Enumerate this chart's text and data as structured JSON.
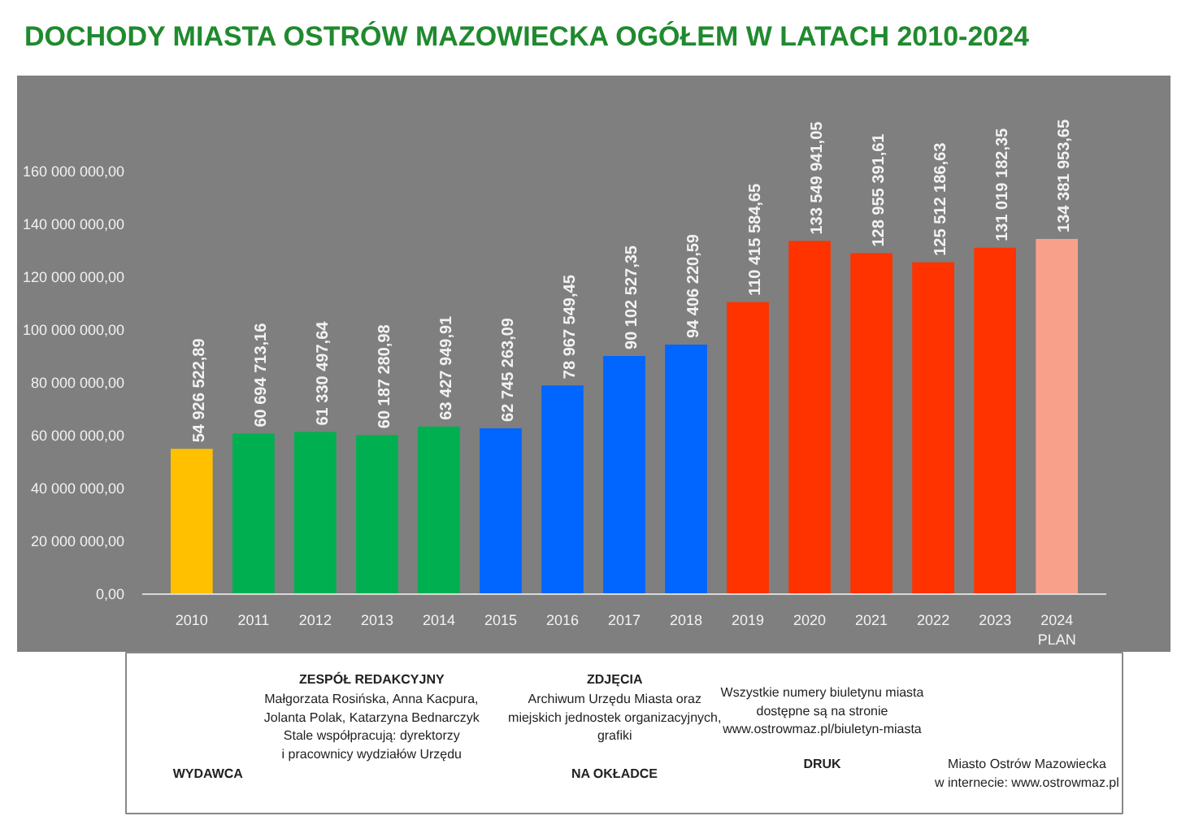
{
  "chart_data": {
    "type": "bar",
    "title": "DOCHODY MIASTA OSTRÓW MAZOWIECKA OGÓŁEM W LATACH 2010-2024",
    "categories": [
      "2010",
      "2011",
      "2012",
      "2013",
      "2014",
      "2015",
      "2016",
      "2017",
      "2018",
      "2019",
      "2020",
      "2021",
      "2022",
      "2023",
      "2024\nPLAN"
    ],
    "values": [
      54926522.89,
      60694713.16,
      61330497.64,
      60187280.98,
      63427949.91,
      62745263.09,
      78967549.45,
      90102527.35,
      94406220.59,
      110415584.65,
      133549941.05,
      128955391.61,
      125512186.63,
      131019182.35,
      134381953.65
    ],
    "colors": [
      "#ffc000",
      "#00b050",
      "#00b050",
      "#00b050",
      "#00b050",
      "#0066ff",
      "#0066ff",
      "#0066ff",
      "#0066ff",
      "#ff3300",
      "#ff3300",
      "#ff3300",
      "#ff3300",
      "#ff3300",
      "#f9a08a"
    ],
    "value_labels": [
      "54 926 522,89",
      "60 694 713,16",
      "61 330 497,64",
      "60 187 280,98",
      "63 427 949,91",
      "62 745 263,09",
      "78 967 549,45",
      "90 102 527,35",
      "94 406 220,59",
      "110 415 584,65",
      "133 549 941,05",
      "128 955 391,61",
      "125 512 186,63",
      "131 019 182,35",
      "134 381 953,65"
    ],
    "ylim": [
      0,
      190000000
    ],
    "yticks": [
      {
        "value": 0,
        "label": "0,00"
      },
      {
        "value": 20000000,
        "label": "20 000 000,00"
      },
      {
        "value": 40000000,
        "label": "40 000 000,00"
      },
      {
        "value": 60000000,
        "label": "60 000 000,00"
      },
      {
        "value": 80000000,
        "label": "80 000 000,00"
      },
      {
        "value": 100000000,
        "label": "100 000 000,00"
      },
      {
        "value": 120000000,
        "label": "120 000 000,00"
      },
      {
        "value": 140000000,
        "label": "140 000 000,00"
      },
      {
        "value": 160000000,
        "label": "160 000 000,00"
      }
    ],
    "grid": false,
    "annotations": [
      "WYDAWCA",
      "ZESPÓŁ REDAKCYJNY",
      "Małgorzata Rosińska, Anna Kacpura,\nJolanta Polak, Katarzyna Bednarczyk\nStale współpracują: dyrektorzy\ni pracownicy wydziałów Urzędu",
      "ZDJĘCIA",
      "Archiwum Urzędu Miasta oraz\nmiejskich jednostek organizacyjnych,\ngrafiki",
      "NA OKŁADCE",
      "Wszystkie numery biuletynu miasta\ndostępne są na stronie\nwww.ostrowmaz.pl/biuletyn-miasta",
      "DRUK",
      "Miasto Ostrów Mazowiecka\nw internecie: www.ostrowmaz.pl"
    ]
  }
}
